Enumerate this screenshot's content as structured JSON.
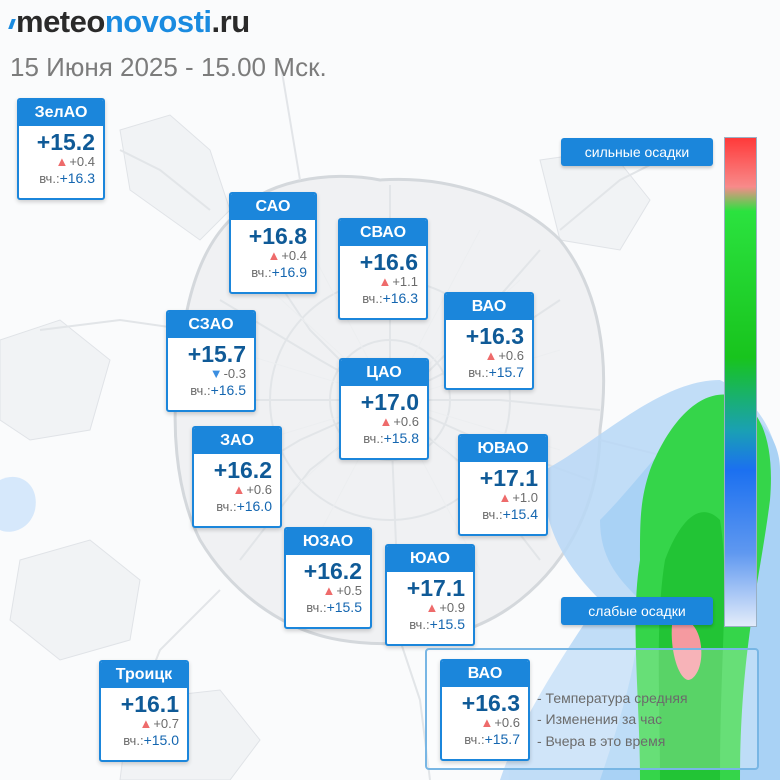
{
  "header": {
    "logo_part1": "meteo",
    "logo_part2": "novosti",
    "logo_part3": ".ru",
    "date": "15 Июня 2025 - 15.00 Мск."
  },
  "colors": {
    "accent": "#1b86db",
    "temp_text": "#0f5a97",
    "rise": "#ee6b6b",
    "fall": "#3b8ee0",
    "map_roads": "#dde1e5",
    "precip_green": "#2ee04a",
    "precip_blue": "#b8d8f7"
  },
  "districts": [
    {
      "id": "zelao",
      "name": "ЗелАО",
      "temp": "+15.2",
      "trend": "up",
      "change": "+0.4",
      "yd_label": "вч.:",
      "yesterday": "+16.3"
    },
    {
      "id": "sao",
      "name": "САО",
      "temp": "+16.8",
      "trend": "up",
      "change": "+0.4",
      "yd_label": "вч.:",
      "yesterday": "+16.9"
    },
    {
      "id": "svao",
      "name": "СВАО",
      "temp": "+16.6",
      "trend": "up",
      "change": "+1.1",
      "yd_label": "вч.:",
      "yesterday": "+16.3"
    },
    {
      "id": "vao",
      "name": "ВАО",
      "temp": "+16.3",
      "trend": "up",
      "change": "+0.6",
      "yd_label": "вч.:",
      "yesterday": "+15.7"
    },
    {
      "id": "szao",
      "name": "СЗАО",
      "temp": "+15.7",
      "trend": "down",
      "change": "-0.3",
      "yd_label": "вч.:",
      "yesterday": "+16.5"
    },
    {
      "id": "cao",
      "name": "ЦАО",
      "temp": "+17.0",
      "trend": "up",
      "change": "+0.6",
      "yd_label": "вч.:",
      "yesterday": "+15.8"
    },
    {
      "id": "zao",
      "name": "ЗАО",
      "temp": "+16.2",
      "trend": "up",
      "change": "+0.6",
      "yd_label": "вч.:",
      "yesterday": "+16.0"
    },
    {
      "id": "yuvao",
      "name": "ЮВАО",
      "temp": "+17.1",
      "trend": "up",
      "change": "+1.0",
      "yd_label": "вч.:",
      "yesterday": "+15.4"
    },
    {
      "id": "yuzao",
      "name": "ЮЗАО",
      "temp": "+16.2",
      "trend": "up",
      "change": "+0.5",
      "yd_label": "вч.:",
      "yesterday": "+15.5"
    },
    {
      "id": "yuao",
      "name": "ЮАО",
      "temp": "+17.1",
      "trend": "up",
      "change": "+0.9",
      "yd_label": "вч.:",
      "yesterday": "+15.5"
    },
    {
      "id": "troick",
      "name": "Троицк",
      "temp": "+16.1",
      "trend": "up",
      "change": "+0.7",
      "yd_label": "вч.:",
      "yesterday": "+15.0"
    }
  ],
  "precip_scale": {
    "strong_label": "сильные осадки",
    "weak_label": "слабые осадки"
  },
  "legend": {
    "sample": {
      "name": "ВАО",
      "temp": "+16.3",
      "trend": "up",
      "change": "+0.6",
      "yd_label": "вч.:",
      "yesterday": "+15.7"
    },
    "line_temp": "- Температура средняя",
    "line_change": "- Изменения за час",
    "line_yesterday": "- Вчера в это время"
  }
}
